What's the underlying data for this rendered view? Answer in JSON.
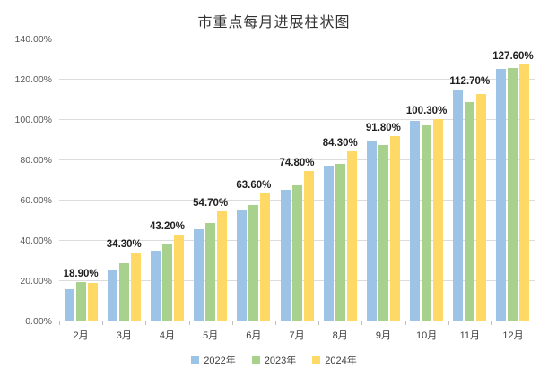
{
  "chart_data": {
    "type": "bar",
    "title": "市重点每月进展柱状图",
    "categories": [
      "2月",
      "3月",
      "4月",
      "5月",
      "6月",
      "7月",
      "8月",
      "9月",
      "10月",
      "11月",
      "12月"
    ],
    "series": [
      {
        "name": "2022年",
        "color": "#9DC3E6",
        "values": [
          16.2,
          25.5,
          35.3,
          46.0,
          55.0,
          65.3,
          77.4,
          89.5,
          99.7,
          115.0,
          125.2
        ]
      },
      {
        "name": "2023年",
        "color": "#A9D18E",
        "values": [
          19.7,
          29.0,
          38.5,
          49.0,
          58.0,
          67.5,
          78.3,
          87.7,
          97.5,
          108.7,
          125.7
        ]
      },
      {
        "name": "2024年",
        "color": "#FFD966",
        "values": [
          18.9,
          34.3,
          43.2,
          54.7,
          63.6,
          74.8,
          84.3,
          91.8,
          100.3,
          112.7,
          127.6
        ]
      }
    ],
    "data_labels": [
      "18.90%",
      "34.30%",
      "43.20%",
      "54.70%",
      "63.60%",
      "74.80%",
      "84.30%",
      "91.80%",
      "100.30%",
      "112.70%",
      "127.60%"
    ],
    "y_ticks": [
      "0.00%",
      "20.00%",
      "40.00%",
      "60.00%",
      "80.00%",
      "100.00%",
      "120.00%",
      "140.00%"
    ],
    "ylim": [
      0,
      140
    ],
    "grid": true,
    "legend_position": "bottom"
  }
}
